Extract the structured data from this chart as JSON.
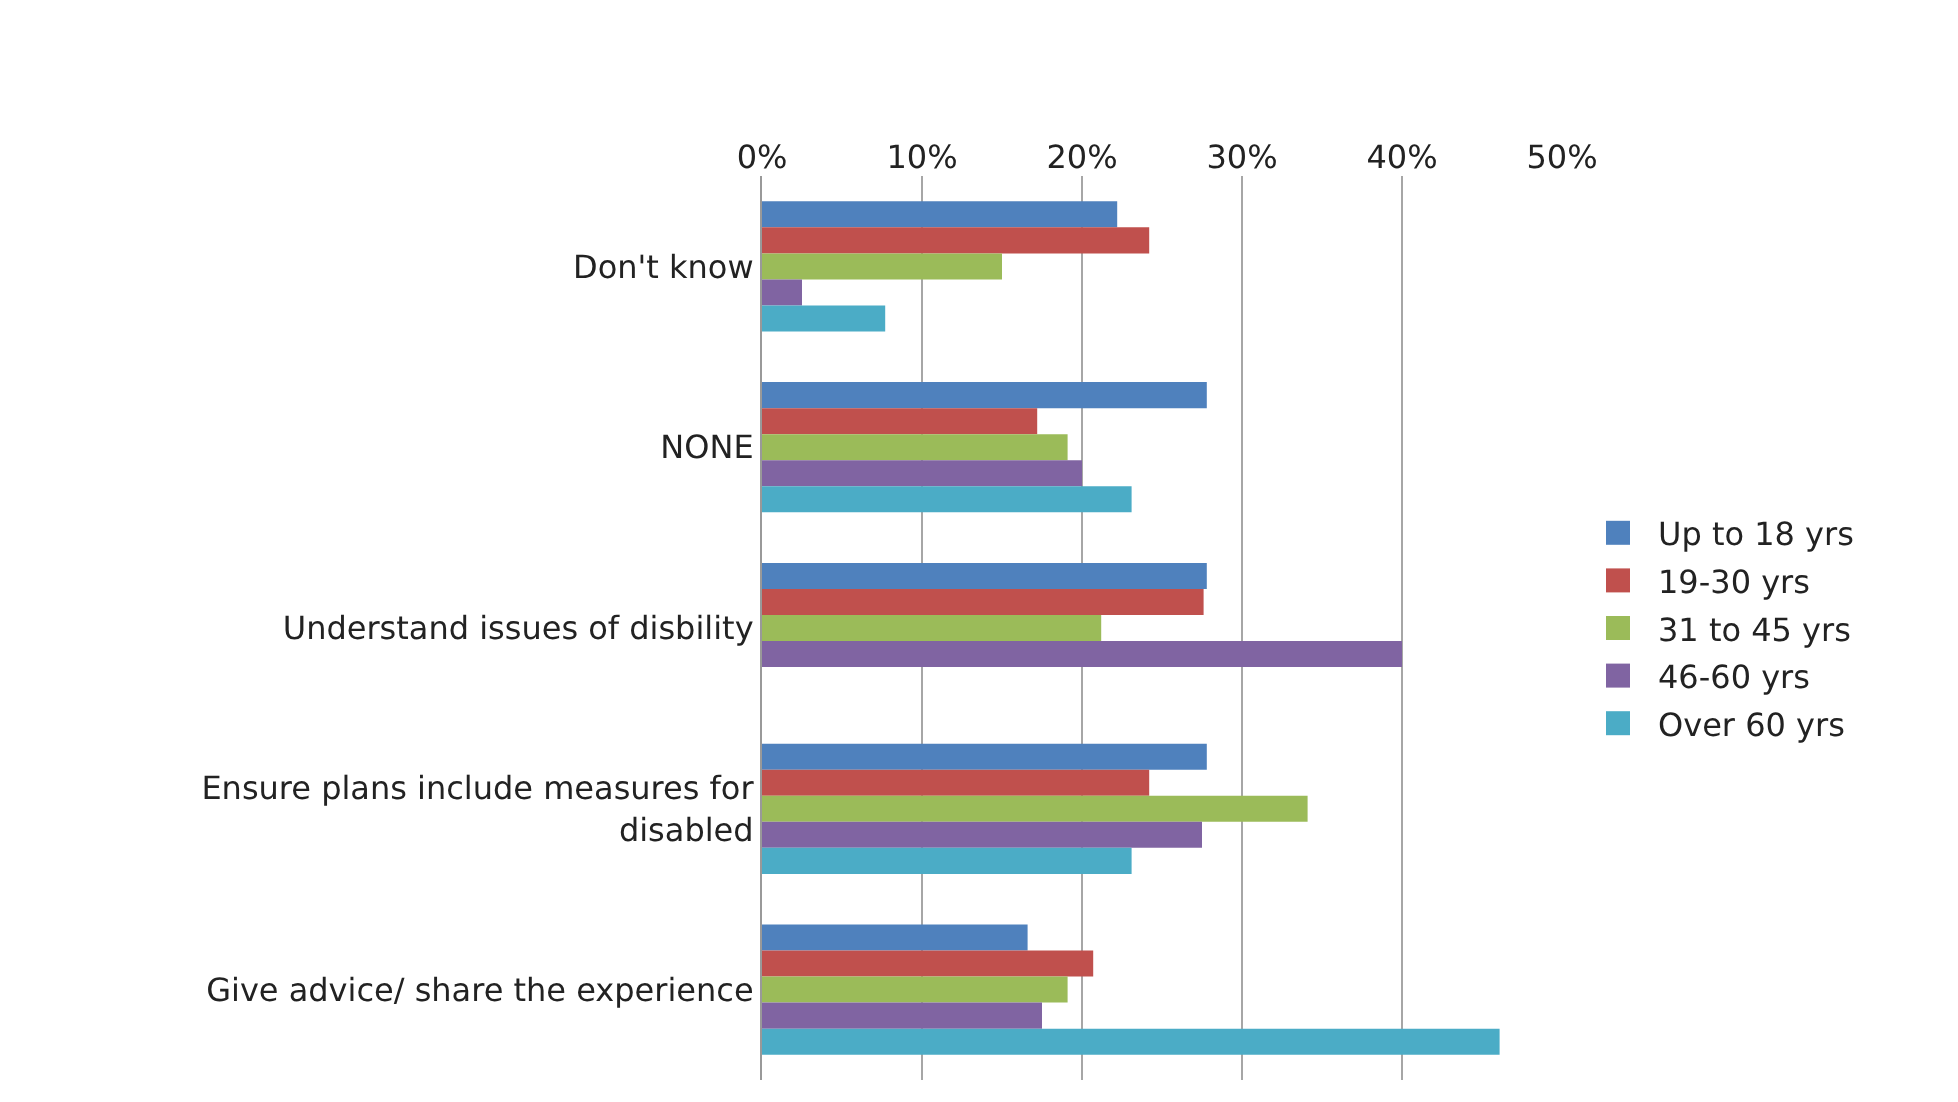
{
  "chart_data": {
    "type": "bar",
    "orientation": "horizontal",
    "categories": [
      "Don't know",
      "NONE",
      "Understand issues of disbility",
      "Ensure plans include measures for disabled",
      "Give advice/ share the experience"
    ],
    "series": [
      {
        "name": "Up to 18 yrs",
        "color": "#4f81bd",
        "values": [
          22.2,
          27.8,
          27.8,
          27.8,
          16.6
        ]
      },
      {
        "name": "19-30 yrs",
        "color": "#c0504d",
        "values": [
          24.2,
          17.2,
          27.6,
          24.2,
          20.7
        ]
      },
      {
        "name": "31 to 45 yrs",
        "color": "#9bbb59",
        "values": [
          15.0,
          19.1,
          21.2,
          34.1,
          19.1
        ]
      },
      {
        "name": "46-60 yrs",
        "color": "#8064a2",
        "values": [
          2.5,
          20.0,
          40.0,
          27.5,
          17.5
        ]
      },
      {
        "name": "Over 60 yrs",
        "color": "#4bacc6",
        "values": [
          7.7,
          23.1,
          null,
          23.1,
          46.1
        ]
      }
    ],
    "xlim": [
      0,
      50
    ],
    "xticks": [
      {
        "value": 0,
        "label": "0%"
      },
      {
        "value": 10,
        "label": "10%"
      },
      {
        "value": 20,
        "label": "20%"
      },
      {
        "value": 30,
        "label": "30%"
      },
      {
        "value": 40,
        "label": "40%"
      },
      {
        "value": 50,
        "label": "50%"
      }
    ],
    "grid": "x",
    "legend": "right"
  }
}
